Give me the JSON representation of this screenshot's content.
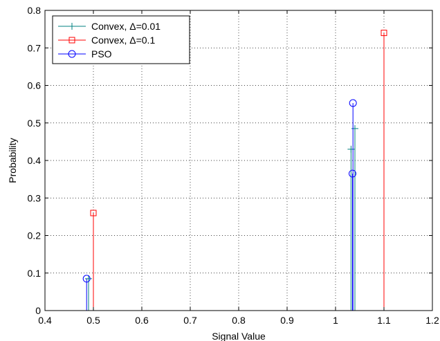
{
  "chart_data": {
    "type": "stem",
    "xlabel": "Signal Value",
    "ylabel": "Probability",
    "xlim": [
      0.4,
      1.2
    ],
    "ylim": [
      0,
      0.8
    ],
    "xticks": [
      "0.4",
      "0.5",
      "0.6",
      "0.7",
      "0.8",
      "0.9",
      "1",
      "1.1",
      "1.2"
    ],
    "yticks": [
      "0",
      "0.1",
      "0.2",
      "0.3",
      "0.4",
      "0.5",
      "0.6",
      "0.7",
      "0.8"
    ],
    "grid": true,
    "legend_position": "top-left",
    "series": [
      {
        "name": "Convex, Δ=0.01",
        "color": "#008080",
        "marker": "plus",
        "points": [
          {
            "x": 0.49,
            "y": 0.085
          },
          {
            "x": 1.032,
            "y": 0.43
          },
          {
            "x": 1.04,
            "y": 0.485
          }
        ]
      },
      {
        "name": "Convex, Δ=0.1",
        "color": "#ff0000",
        "marker": "square",
        "points": [
          {
            "x": 0.5,
            "y": 0.26
          },
          {
            "x": 1.1,
            "y": 0.74
          }
        ]
      },
      {
        "name": "PSO",
        "color": "#0000ff",
        "marker": "circle",
        "points": [
          {
            "x": 0.486,
            "y": 0.085
          },
          {
            "x": 1.035,
            "y": 0.365
          },
          {
            "x": 1.036,
            "y": 0.553
          }
        ]
      }
    ]
  }
}
